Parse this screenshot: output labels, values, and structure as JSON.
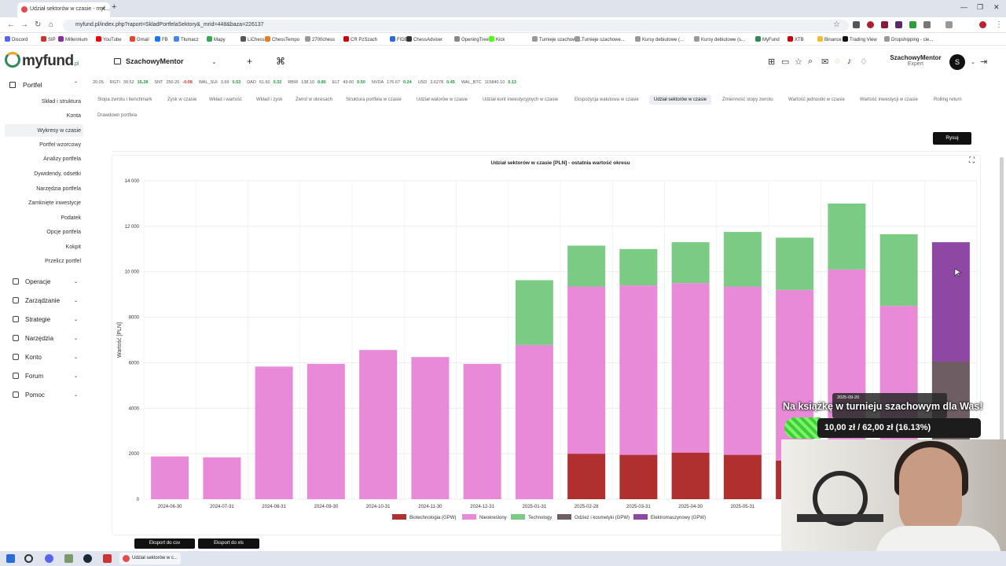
{
  "browser": {
    "tab_title": "Udział sektorów w czasie - myf...",
    "url": "myfund.pl/index.php?raport=SkladPortfelaSektory&_mrid=448&baza=226137",
    "bookmarks": [
      "Discord",
      "SIP",
      "Millennium",
      "YouTube",
      "Gmail",
      "FB",
      "Tłumacz",
      "Mapy",
      "LiChess",
      "ChessTempo",
      "2700chess",
      "CR PzSzach",
      "FIDE",
      "ChessAdviser",
      "OpeningTree",
      "Kick",
      "Turnieje szachowe...",
      "Turnieje szachowe...",
      "Kursy debiutowe (...",
      "Kursy debiutowe (s...",
      "MyFund",
      "XTB",
      "Binance",
      "Trading View",
      "Dropshipping - cie..."
    ]
  },
  "app": {
    "logo": "myfund",
    "logo_suffix": ".pl",
    "portfolio_name": "SzachowyMentor",
    "user_name": "SzachowyMentor",
    "user_role": "Expert",
    "avatar_letter": "S"
  },
  "ticker": [
    {
      "name": "20.05",
      "price": "",
      "change": "",
      "dir": ""
    },
    {
      "name": "RGTI",
      "price": "39.52",
      "change": "15.28",
      "dir": "up"
    },
    {
      "name": "SNT",
      "price": "250.20",
      "change": "-0.08",
      "dir": "dn"
    },
    {
      "name": "WAL_SUI",
      "price": "3.69",
      "change": "0.53",
      "dir": "up"
    },
    {
      "name": "DAD",
      "price": "61.60",
      "change": "0.32",
      "dir": "up"
    },
    {
      "name": "RBW",
      "price": "138.10",
      "change": "0.80",
      "dir": "up"
    },
    {
      "name": "ELT",
      "price": "49.60",
      "change": "0.50",
      "dir": "up"
    },
    {
      "name": "NVDA",
      "price": "176.67",
      "change": "0.24",
      "dir": "up"
    },
    {
      "name": "USD",
      "price": "3.6278",
      "change": "0.45",
      "dir": "up"
    },
    {
      "name": "WAL_BTC",
      "price": "115840.10",
      "change": "0.13",
      "dir": "up"
    }
  ],
  "sidebar": {
    "section": "Portfel",
    "items": [
      "Skład i struktura",
      "Konta",
      "Wykresy w czasie",
      "Portfel wzorcowy",
      "Analizy portfela",
      "Dywidendy, odsetki",
      "Narzędzia portfela",
      "Zamknięte inwestycje",
      "Podatek",
      "Opcje portfela",
      "Kokpit",
      "Przelicz portfel"
    ],
    "groups": [
      "Operacje",
      "Zarządzanie",
      "Strategie",
      "Narzędzia",
      "Konto",
      "Forum",
      "Pomoc"
    ]
  },
  "tabs": [
    "Stopa zwrotu i benchmark",
    "Zysk w czasie",
    "Wkład i wartość",
    "Wkład i zysk",
    "Zwrot w okresach",
    "Struktura portfela w czasie",
    "Udział walorów w czasie",
    "Udział kont inwestycyjnych w czasie",
    "Ekspozycja walutowa w czasie",
    "Udział sektorów w czasie",
    "Zmienność stopy zwrotu",
    "Wartość jednostki w czasie",
    "Wartość inwestycji w czasie",
    "Rolling return",
    "Drawdown portfela"
  ],
  "buttons": {
    "draw": "Rysuj",
    "export_csv": "Eksport do csv",
    "export_xls": "Eksport do xls"
  },
  "chart_data": {
    "type": "bar",
    "stacked": true,
    "title": "Udział sektorów w czasie [PLN] - ostatnia wartość okresu",
    "ylabel": "Wartość [PLN]",
    "ylim": [
      0,
      14000
    ],
    "yticks": [
      "0",
      "2000",
      "4000",
      "6000",
      "8000",
      "10 000",
      "12 000",
      "14 000"
    ],
    "ytick_values": [
      0,
      2000,
      4000,
      6000,
      8000,
      10000,
      12000,
      14000
    ],
    "categories": [
      "2024-06-30",
      "2024-07-31",
      "2024-08-31",
      "2024-09-30",
      "2024-10-31",
      "2024-11-30",
      "2024-12-31",
      "2025-01-31",
      "2025-02-28",
      "2025-03-31",
      "2025-04-30",
      "2025-05-31",
      "",
      "",
      "",
      ""
    ],
    "series": [
      {
        "name": "Biotechnologia (GPW)",
        "color": "#b03030",
        "values": [
          0,
          0,
          0,
          0,
          0,
          0,
          0,
          0,
          2000,
          1950,
          2050,
          1950,
          1700,
          0,
          0,
          0
        ]
      },
      {
        "name": "Nieokreślony",
        "color": "#e98ad8",
        "values": [
          1880,
          1840,
          5830,
          5950,
          6560,
          6250,
          5950,
          6780,
          7350,
          7450,
          7450,
          7400,
          7500,
          10100,
          8500,
          0
        ]
      },
      {
        "name": "Technology",
        "color": "#7ccb85",
        "values": [
          0,
          0,
          0,
          0,
          0,
          0,
          0,
          2850,
          1800,
          1600,
          1800,
          2400,
          2300,
          2900,
          3150,
          0
        ]
      },
      {
        "name": "Odzież i kosmetyki (GPW)",
        "color": "#6f5d64",
        "values": [
          0,
          0,
          0,
          0,
          0,
          0,
          0,
          0,
          0,
          0,
          0,
          0,
          0,
          0,
          0,
          6050
        ]
      },
      {
        "name": "Elektromaszynowy (GPW)",
        "color": "#8e48a4",
        "values": [
          0,
          0,
          0,
          0,
          0,
          0,
          0,
          0,
          0,
          0,
          0,
          0,
          0,
          0,
          0,
          5250
        ]
      }
    ],
    "legend_position": "bottom",
    "grid": true
  },
  "overlay": {
    "tooltip_date": "2025-09-20",
    "banner_text": "Na książkę w turnieju szachowym dla Was!",
    "donation_text": "10,00 zł / 62,00 zł (16.13%)"
  },
  "taskbar": {
    "active_app": "Udział sektorów w c..."
  },
  "colors": {
    "accent": "#111111",
    "up": "#1a9e3a",
    "down": "#dd3333"
  }
}
